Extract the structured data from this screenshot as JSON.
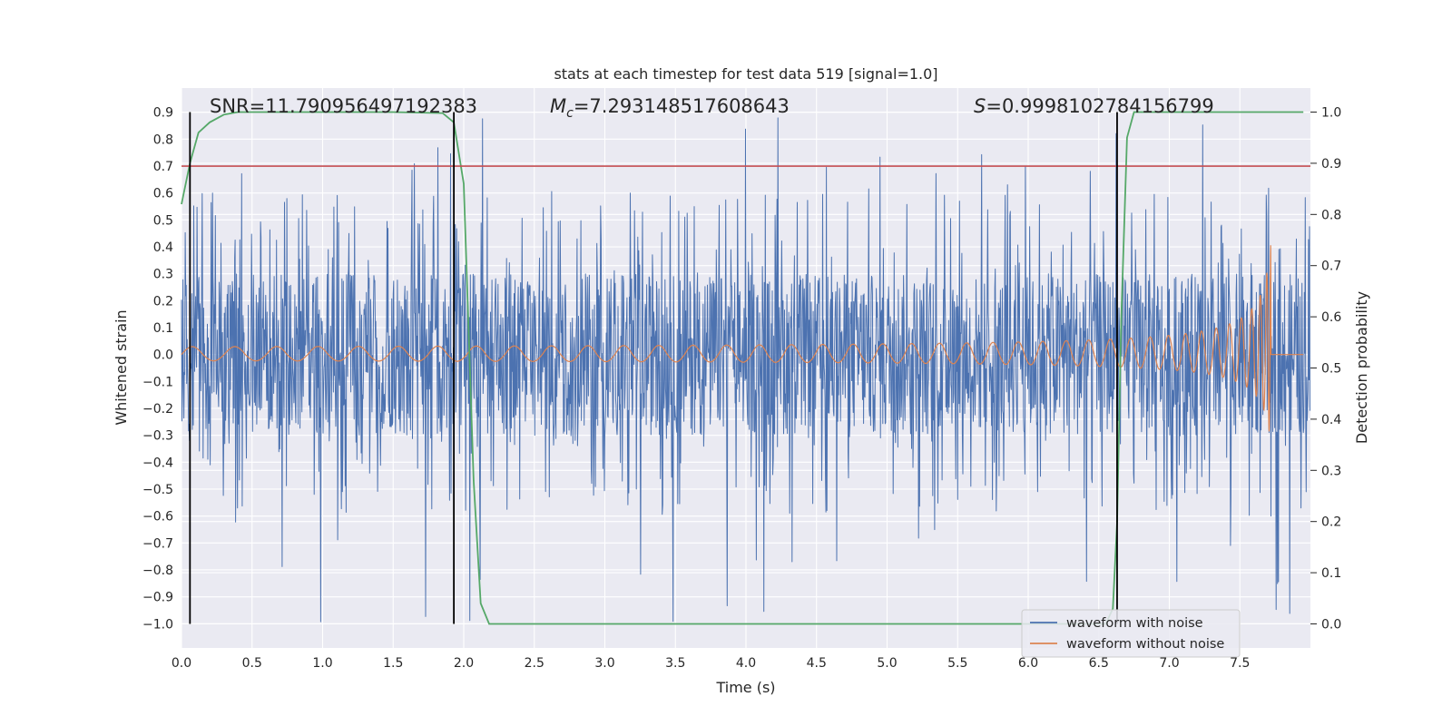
{
  "chart_data": {
    "type": "line",
    "title": "stats at each timestep for test data 519 [signal=1.0]",
    "xlabel": "Time (s)",
    "ylabel": "Whitened strain",
    "ylabel_right": "Detection probability",
    "xlim": [
      0.0,
      8.0
    ],
    "ylim": [
      -1.09,
      0.99
    ],
    "ylim_right": [
      -0.047,
      1.047
    ],
    "x_ticks": [
      "0.0",
      "0.5",
      "1.0",
      "1.5",
      "2.0",
      "2.5",
      "3.0",
      "3.5",
      "4.0",
      "4.5",
      "5.0",
      "5.5",
      "6.0",
      "6.5",
      "7.0",
      "7.5"
    ],
    "y_ticks": [
      "0.9",
      "0.8",
      "0.7",
      "0.6",
      "0.5",
      "0.4",
      "0.3",
      "0.2",
      "0.1",
      "0.0",
      "−0.1",
      "−0.2",
      "−0.3",
      "−0.4",
      "−0.5",
      "−0.6",
      "−0.7",
      "−0.8",
      "−0.9",
      "−1.0"
    ],
    "y_right_ticks": [
      "1.0",
      "0.9",
      "0.8",
      "0.7",
      "0.6",
      "0.5",
      "0.4",
      "0.3",
      "0.2",
      "0.1",
      "0.0"
    ],
    "grid": true,
    "legend_position": "lower-right",
    "annotations": {
      "snr": "SNR=11.790956497192383",
      "mc_prefix": "M",
      "mc_sub": "c",
      "mc_value": "=7.293148517608643",
      "s_prefix": "S",
      "s_value": "=0.9998102784156799"
    },
    "threshold": 0.7,
    "vertical_lines": [
      0.06,
      1.93,
      6.63
    ],
    "series": [
      {
        "name": "waveform with noise",
        "color": "#4c72b0",
        "envelope": "noise with typical amplitude ±0.3 and spikes reaching about +0.9 and −1.0 across 0–8 s"
      },
      {
        "name": "waveform without noise",
        "color": "#dd8452",
        "envelope": "chirp: amplitude 0.02 at 0 s growing to 0.45 / −0.35 at 7.72 s, then 0"
      },
      {
        "name": "Detection probability",
        "color": "#55a868",
        "axis": "right",
        "x": [
          0.0,
          0.06,
          0.12,
          0.2,
          0.3,
          0.4,
          0.5,
          1.0,
          1.5,
          1.85,
          1.93,
          2.0,
          2.07,
          2.12,
          2.18,
          2.3,
          3.0,
          6.0,
          6.55,
          6.6,
          6.63,
          6.66,
          6.7,
          6.75,
          6.8,
          7.0,
          7.95
        ],
        "y": [
          0.82,
          0.9,
          0.96,
          0.98,
          0.995,
          1.0,
          1.0,
          1.0,
          1.0,
          0.998,
          0.98,
          0.86,
          0.28,
          0.04,
          0.0,
          0.0,
          0.0,
          0.0,
          0.0,
          0.03,
          0.2,
          0.6,
          0.95,
          1.0,
          1.0,
          1.0,
          1.0
        ]
      }
    ],
    "colors": {
      "background": "#eaeaf2",
      "grid": "#ffffff",
      "threshold": "#c44e52",
      "vline": "#000000"
    }
  }
}
